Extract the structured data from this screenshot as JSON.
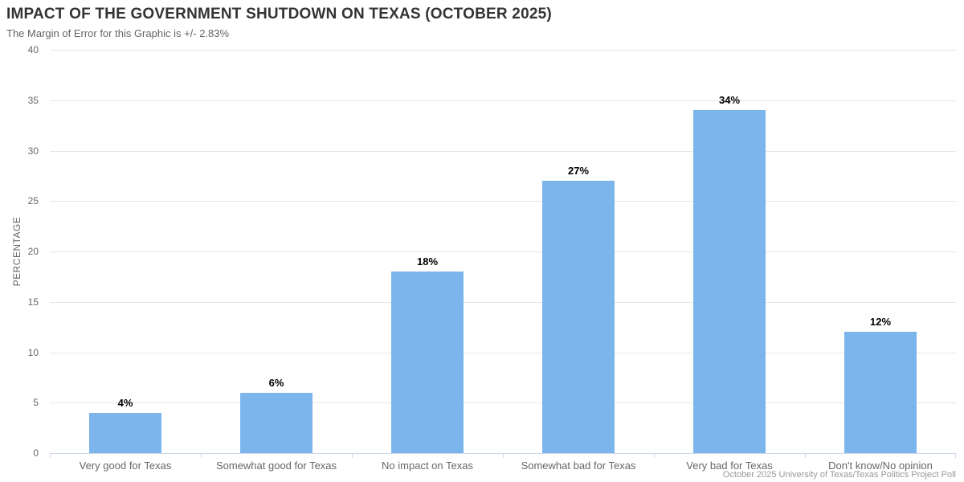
{
  "header": {
    "title": "IMPACT OF THE GOVERNMENT SHUTDOWN ON TEXAS (OCTOBER 2025)",
    "subtitle": "The Margin of Error for this Graphic is +/- 2.83%"
  },
  "footer": {
    "credits": "October 2025 University of Texas/Texas Politics Project Poll"
  },
  "chart_data": {
    "type": "bar",
    "title": "IMPACT OF THE GOVERNMENT SHUTDOWN ON TEXAS (OCTOBER 2025)",
    "subtitle": "The Margin of Error for this Graphic is +/- 2.83%",
    "categories": [
      "Very good for Texas",
      "Somewhat good for Texas",
      "No impact on Texas",
      "Somewhat bad for Texas",
      "Very bad for Texas",
      "Don't know/No opinion"
    ],
    "values": [
      4,
      6,
      18,
      27,
      34,
      12
    ],
    "data_labels": [
      "4%",
      "6%",
      "18%",
      "27%",
      "34%",
      "12%"
    ],
    "xlabel": "",
    "ylabel": "PERCENTAGE",
    "ylim": [
      0,
      40
    ],
    "yticks": [
      0,
      5,
      10,
      15,
      20,
      25,
      30,
      35,
      40
    ],
    "grid": true,
    "legend": false,
    "colors": {
      "bar": "#7cb5ec",
      "gridline": "#e6e6e6",
      "axis_line": "#ccd6eb",
      "title_text": "#333333",
      "label_text": "#666666",
      "data_label_text": "#000000",
      "credits_text": "#999999"
    }
  }
}
